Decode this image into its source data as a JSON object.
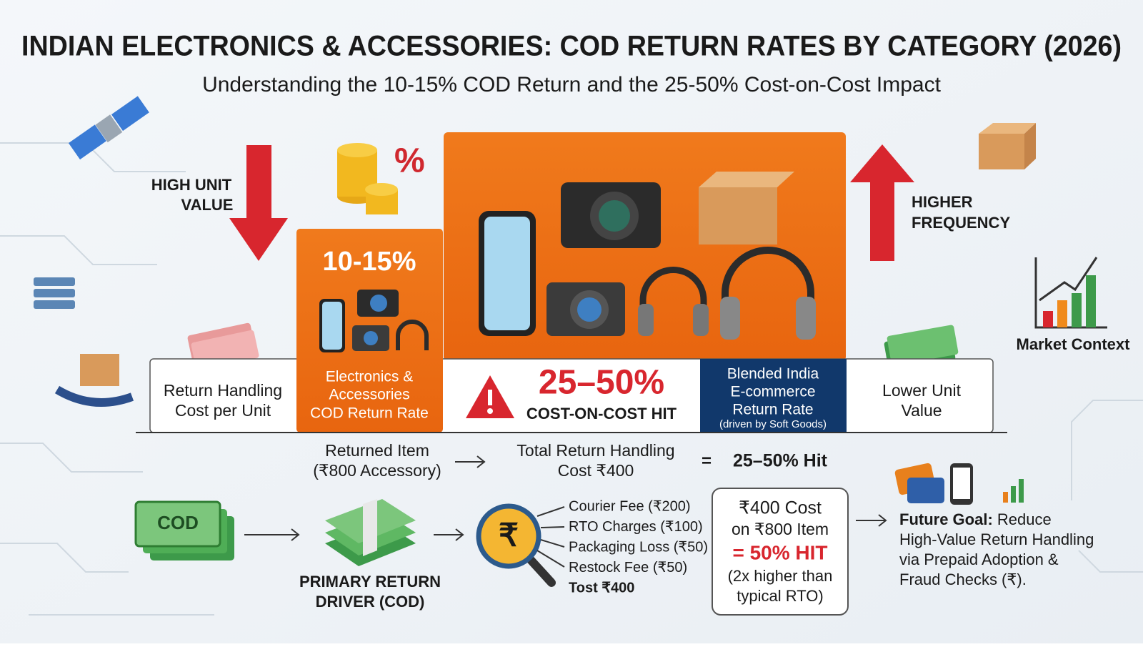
{
  "header": {
    "title": "INDIAN ELECTRONICS & ACCESSORIES: COD RETURN RATES BY CATEGORY (2026)",
    "subtitle": "Understanding the 10-15% COD Return and the 25-50% Cost-on-Cost Impact"
  },
  "side_labels": {
    "left": [
      "HIGH UNIT",
      "VALUE"
    ],
    "right": [
      "HIGHER",
      "FREQUENCY"
    ],
    "market": "Market Context"
  },
  "icons": {
    "percent": "%",
    "rupee": "₹",
    "cod": "COD"
  },
  "panels": [
    {
      "lines": [
        "Return Handling",
        "Cost per Unit"
      ]
    },
    {
      "headline": "10-15%",
      "lines": [
        "Electronics &",
        "Accessories",
        "COD Return Rate"
      ]
    },
    {
      "headline": "25–50%",
      "lines": [
        "COST-ON-COST HIT"
      ]
    },
    {
      "lines": [
        "Blended India",
        "E-commerce",
        "Return Rate"
      ],
      "note": "(driven by Soft Goods)"
    },
    {
      "lines": [
        "Lower Unit",
        "Value"
      ]
    }
  ],
  "equation": {
    "item": [
      "Returned Item",
      "(₹800 Accessory)"
    ],
    "cost": [
      "Total Return Handling",
      "Cost ₹400"
    ],
    "equals": "=",
    "result": "25–50% Hit"
  },
  "flow": {
    "driver": [
      "PRIMARY RETURN",
      "DRIVER (COD)"
    ],
    "breakdown": [
      "Courier Fee (₹200)",
      "RTO Charges (₹100)",
      "Packaging Loss (₹50)",
      "Restock Fee (₹50)",
      "Tost ₹400"
    ],
    "callout": [
      "₹400 Cost",
      "on ₹800 Item",
      "= 50% HIT",
      "(2x higher than",
      "typical RTO)"
    ],
    "goal": {
      "label": "Future Goal:",
      "lines": [
        " Reduce",
        "High-Value Return Handling",
        "via Prepaid Adoption &",
        "Fraud Checks (₹)."
      ]
    }
  }
}
